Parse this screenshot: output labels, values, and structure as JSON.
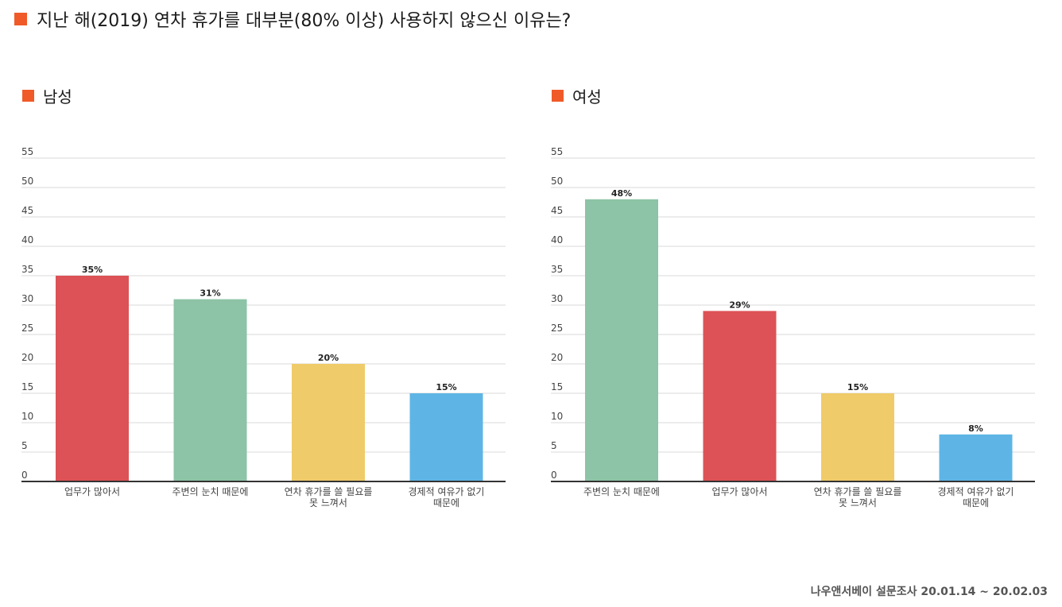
{
  "title": "지난 해(2019) 연차 휴가를  대부분(80% 이상) 사용하지 않으신 이유는?",
  "footer": "나우앤서베이 설문조사 20.01.14 ~ 20.02.03",
  "colors": {
    "accent": "#f05a28",
    "red": "#dc5256",
    "green": "#8dc3a6",
    "yellow": "#efcb69",
    "blue": "#5eb5e5"
  },
  "chart_data": [
    {
      "type": "bar",
      "title": "남성",
      "categories": [
        [
          "업무가 많아서"
        ],
        [
          "주변의 눈치 때문에"
        ],
        [
          "연차 휴가를 쓸 필요를",
          "못 느껴서"
        ],
        [
          "경제적 여유가 없기",
          "때문에"
        ]
      ],
      "values": [
        35,
        31,
        20,
        15
      ],
      "data_labels": [
        "35%",
        "31%",
        "20%",
        "15%"
      ],
      "bar_colors": [
        "#dc5256",
        "#8dc3a6",
        "#efcb69",
        "#5eb5e5"
      ],
      "ylim": [
        0,
        55
      ],
      "yticks": [
        0,
        5,
        10,
        15,
        20,
        25,
        30,
        35,
        40,
        45,
        50,
        55
      ],
      "grid": true,
      "xlabel": "",
      "ylabel": ""
    },
    {
      "type": "bar",
      "title": "여성",
      "categories": [
        [
          "주변의 눈치 때문에"
        ],
        [
          "업무가 많아서"
        ],
        [
          "연차 휴가를 쓸 필요를",
          "못 느껴서"
        ],
        [
          "경제적 여유가 없기",
          "때문에"
        ]
      ],
      "values": [
        48,
        29,
        15,
        8
      ],
      "data_labels": [
        "48%",
        "29%",
        "15%",
        "8%"
      ],
      "bar_colors": [
        "#8dc3a6",
        "#dc5256",
        "#efcb69",
        "#5eb5e5"
      ],
      "ylim": [
        0,
        55
      ],
      "yticks": [
        0,
        5,
        10,
        15,
        20,
        25,
        30,
        35,
        40,
        45,
        50,
        55
      ],
      "grid": true,
      "xlabel": "",
      "ylabel": ""
    }
  ]
}
